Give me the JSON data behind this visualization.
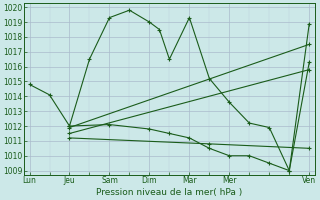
{
  "title": "Pression niveau de la mer( hPa )",
  "ylabel_values": [
    1009,
    1010,
    1011,
    1012,
    1013,
    1014,
    1015,
    1016,
    1017,
    1018,
    1019,
    1020
  ],
  "ylim": [
    1008.7,
    1020.3
  ],
  "xlim": [
    -0.3,
    14.3
  ],
  "background_color": "#cce8e8",
  "grid_color_major": "#aabbcc",
  "grid_color_minor": "#bbccdd",
  "line_color": "#1a5c1a",
  "x_tick_positions": [
    0,
    2,
    4,
    6,
    8,
    10,
    14
  ],
  "x_labels": [
    "Lun",
    "Jeu",
    "Sam",
    "Dim",
    "Mar",
    "Mer",
    "Ven"
  ],
  "lines": [
    {
      "x": [
        0,
        1,
        2,
        3,
        4,
        5,
        6,
        6.5,
        7,
        8,
        9,
        10,
        11,
        12,
        13,
        14
      ],
      "y": [
        1014.8,
        1014.1,
        1012.0,
        1016.5,
        1019.3,
        1019.8,
        1019.0,
        1018.5,
        1016.5,
        1019.3,
        1015.2,
        1013.6,
        1012.2,
        1011.9,
        1009.0,
        1018.9
      ]
    },
    {
      "x": [
        2,
        14
      ],
      "y": [
        1011.9,
        1017.5
      ]
    },
    {
      "x": [
        2,
        14
      ],
      "y": [
        1011.5,
        1015.8
      ]
    },
    {
      "x": [
        2,
        9,
        14
      ],
      "y": [
        1011.2,
        1010.8,
        1010.5
      ]
    },
    {
      "x": [
        2,
        4,
        6,
        7,
        8,
        9,
        10,
        11,
        12,
        13,
        14
      ],
      "y": [
        1012.0,
        1012.1,
        1011.8,
        1011.5,
        1011.2,
        1010.5,
        1010.0,
        1010.0,
        1009.5,
        1009.0,
        1016.3
      ]
    }
  ]
}
